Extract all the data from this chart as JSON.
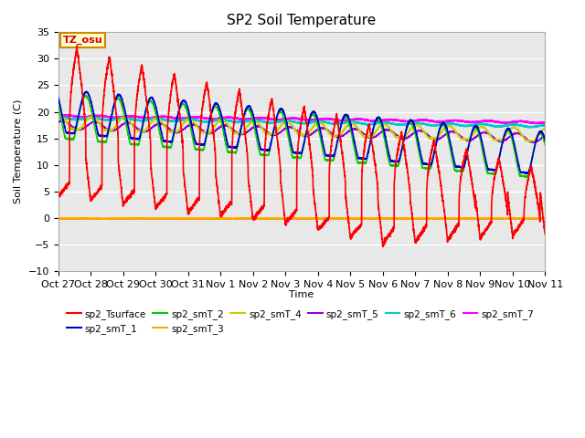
{
  "title": "SP2 Soil Temperature",
  "ylabel": "Soil Temperature (C)",
  "xlabel": "Time",
  "tz_label": "TZ_osu",
  "ylim": [
    -10,
    35
  ],
  "yticks": [
    -10,
    -5,
    0,
    5,
    10,
    15,
    20,
    25,
    30,
    35
  ],
  "x_tick_labels": [
    "Oct 27",
    "Oct 28",
    "Oct 29",
    "Oct 30",
    "Oct 31",
    "Nov 1",
    "Nov 2",
    "Nov 3",
    "Nov 4",
    "Nov 5",
    "Nov 6",
    "Nov 7",
    "Nov 8",
    "Nov 9",
    "Nov 10",
    "Nov 11"
  ],
  "background_color": "#ffffff",
  "plot_bg_color": "#e8e8e8",
  "grid_color": "#ffffff",
  "legend_colors": {
    "sp2_Tsurface": "#ff0000",
    "sp2_smT_1": "#0000cc",
    "sp2_smT_2": "#00cc00",
    "sp2_smT_3": "#ffa500",
    "sp2_smT_4": "#cccc00",
    "sp2_smT_5": "#9900cc",
    "sp2_smT_6": "#00cccc",
    "sp2_smT_7": "#ff00ff"
  }
}
